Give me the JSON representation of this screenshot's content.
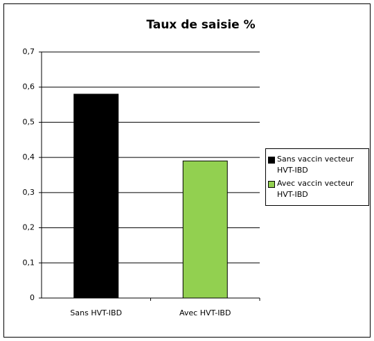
{
  "chart_data": {
    "type": "bar",
    "title": "Taux de saisie %",
    "categories": [
      "Sans HVT-IBD",
      "Avec HVT-IBD"
    ],
    "series": [
      {
        "name": "Sans vaccin vecteur HVT-IBD",
        "color": "#000000",
        "values": [
          0.58,
          null
        ]
      },
      {
        "name": "Avec vaccin vecteur HVT-IBD",
        "color": "#92d050",
        "values": [
          null,
          0.39
        ]
      }
    ],
    "ylim": [
      0,
      0.7
    ],
    "yticks": [
      0,
      {
        "value": 0.1,
        "label": "0,1"
      },
      {
        "value": 0.2,
        "label": "0,2"
      },
      {
        "value": 0.3,
        "label": "0,3"
      },
      {
        "value": 0.4,
        "label": "0,4"
      },
      {
        "value": 0.5,
        "label": "0,5"
      },
      {
        "value": 0.6,
        "label": "0,6"
      },
      {
        "value": 0.7,
        "label": "0,7"
      }
    ],
    "grid": true,
    "legend": "right"
  }
}
